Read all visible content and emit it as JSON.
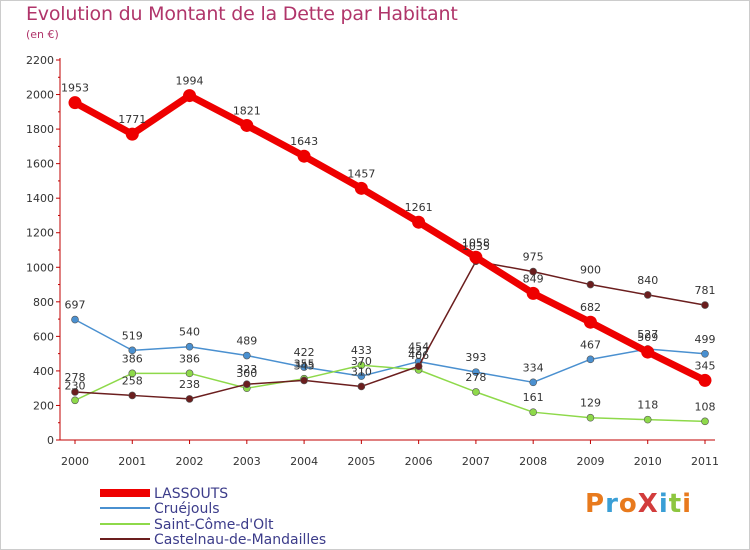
{
  "title": "Evolution du Montant de la Dette par Habitant",
  "subtitle": "(en €)",
  "logo": "ProXiti",
  "colors": {
    "title": "#b0356a",
    "axis": "#c00000",
    "grid": "#dddddd",
    "logo": [
      "#e87a1d",
      "#3a9fd6",
      "#e87a1d",
      "#d23c3c",
      "#3a9fd6",
      "#8dc63f",
      "#e87a1d"
    ]
  },
  "chart_data": {
    "type": "line",
    "x": [
      "2000",
      "2001",
      "2002",
      "2003",
      "2004",
      "2005",
      "2006",
      "2007",
      "2008",
      "2009",
      "2010",
      "2011"
    ],
    "ylim": [
      0,
      2200
    ],
    "yticks": [
      0,
      200,
      400,
      600,
      800,
      1000,
      1200,
      1400,
      1600,
      1800,
      2000,
      2200
    ],
    "grid": false,
    "legend_position": "bottom-left",
    "series": [
      {
        "name": "LASSOUTS",
        "color": "#ee0000",
        "values": [
          1953,
          1771,
          1994,
          1821,
          1643,
          1457,
          1261,
          1058,
          849,
          682,
          509,
          345
        ]
      },
      {
        "name": "Cruéjouls",
        "color": "#4a90d0",
        "values": [
          697,
          519,
          540,
          489,
          422,
          370,
          454,
          393,
          334,
          467,
          527,
          499
        ]
      },
      {
        "name": "Saint-Côme-d'Olt",
        "color": "#8ed94a",
        "values": [
          230,
          386,
          386,
          300,
          355,
          433,
          406,
          278,
          161,
          129,
          118,
          108
        ]
      },
      {
        "name": "Castelnau-de-Mandailles",
        "color": "#6b1e1e",
        "values": [
          278,
          258,
          238,
          323,
          345,
          310,
          427,
          1035,
          975,
          900,
          840,
          781
        ]
      }
    ]
  }
}
